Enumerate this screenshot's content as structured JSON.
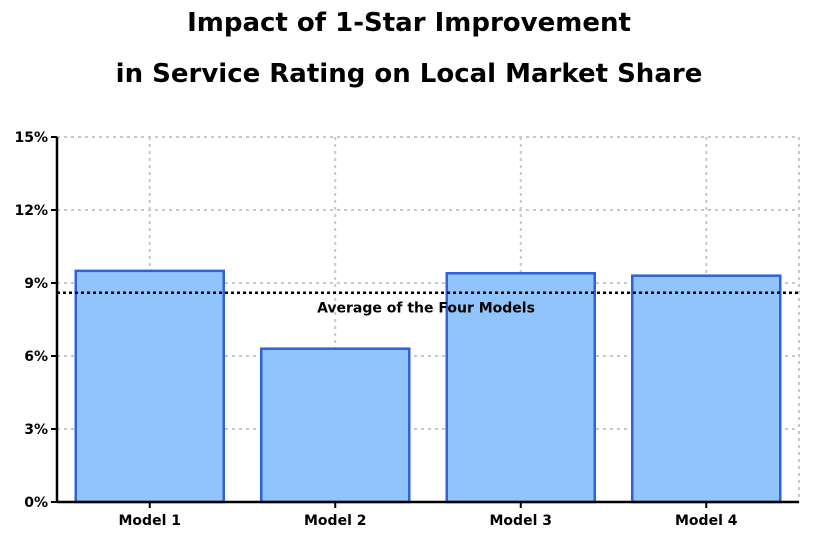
{
  "chart_data": {
    "type": "bar",
    "title_line1": "Impact of 1-Star Improvement",
    "title_line2": "in Service Rating on Local Market Share",
    "categories": [
      "Model 1",
      "Model 2",
      "Model 3",
      "Model 4"
    ],
    "values": [
      9.5,
      6.3,
      9.4,
      9.3
    ],
    "unit": "%",
    "ylim": [
      0,
      15
    ],
    "yticks": [
      0,
      3,
      6,
      9,
      12,
      15
    ],
    "ytick_labels": [
      "0%",
      "3%",
      "6%",
      "9%",
      "12%",
      "15%"
    ],
    "grid": true,
    "reference_line": {
      "label": "Average of the Four Models",
      "value": 8.6,
      "style": "dotted"
    },
    "colors": {
      "bar_fill": "#90c4fa",
      "bar_stroke": "#2e62d9",
      "grid": "#c8c8c8",
      "axis": "#000000"
    }
  }
}
